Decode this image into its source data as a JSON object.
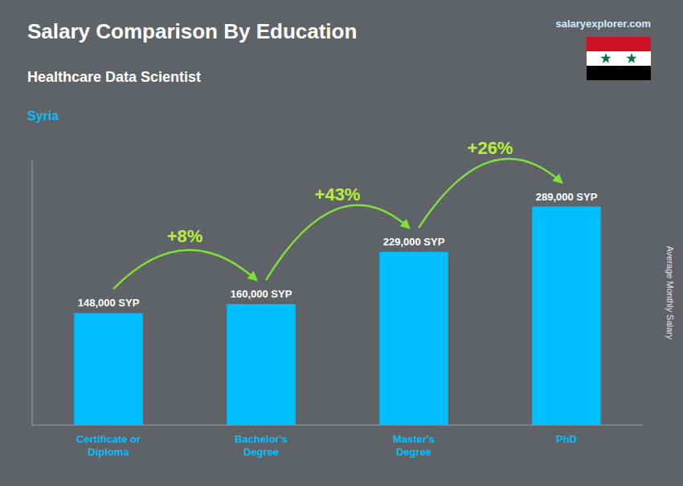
{
  "chart_data": {
    "type": "bar",
    "title": "Salary Comparison By Education",
    "subtitle": "Healthcare Data Scientist",
    "country": "Syria",
    "watermark": "salaryexplorer.com",
    "ylabel": "Average Monthly Salary",
    "categories": [
      "Certificate or\nDiploma",
      "Bachelor's\nDegree",
      "Master's\nDegree",
      "PhD"
    ],
    "values": [
      148000,
      160000,
      229000,
      289000
    ],
    "value_labels": [
      "148,000 SYP",
      "160,000 SYP",
      "229,000 SYP",
      "289,000 SYP"
    ],
    "data_labels": true,
    "annotations": [
      "+8%",
      "+43%",
      "+26%"
    ],
    "color": "#00BFFF",
    "ylim": [
      0,
      350000
    ],
    "tick_labels": "x"
  }
}
